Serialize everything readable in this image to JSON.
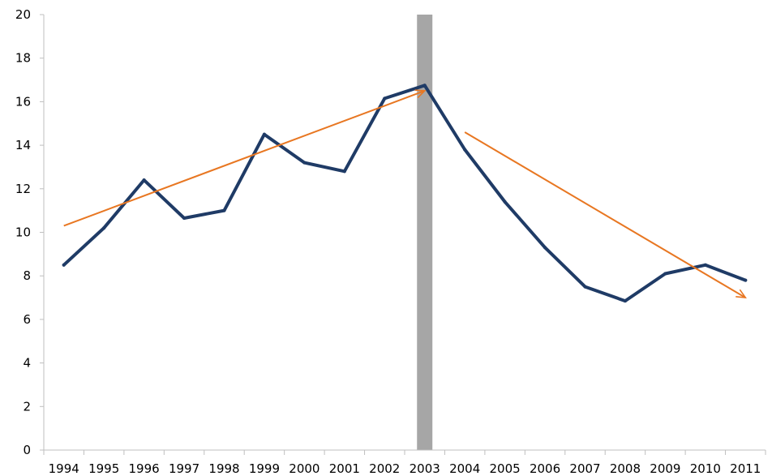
{
  "chart_data": {
    "type": "line",
    "title": "",
    "xlabel": "",
    "ylabel": "",
    "categories": [
      "1994",
      "1995",
      "1996",
      "1997",
      "1998",
      "1999",
      "2000",
      "2001",
      "2002",
      "2003",
      "2004",
      "2005",
      "2006",
      "2007",
      "2008",
      "2009",
      "2010",
      "2011"
    ],
    "series": [
      {
        "color": "#1f3b66",
        "values": [
          8.5,
          10.2,
          12.4,
          10.65,
          11.0,
          14.5,
          13.2,
          12.8,
          16.15,
          16.75,
          13.8,
          11.4,
          9.3,
          7.5,
          6.85,
          8.1,
          8.5,
          7.8
        ]
      }
    ],
    "ylim": [
      0,
      20
    ],
    "yticks": [
      0,
      2,
      4,
      6,
      8,
      10,
      12,
      14,
      16,
      18,
      20
    ],
    "grid": false,
    "legend": "none",
    "highlight_band": {
      "category": "2003",
      "color": "#a6a6a6"
    },
    "trend_arrows": [
      {
        "color": "#e87722",
        "from": {
          "x": "1994",
          "y": 10.3
        },
        "to": {
          "x": "2003",
          "y": 16.5
        }
      },
      {
        "color": "#e87722",
        "from": {
          "x": "2004",
          "y": 14.6
        },
        "to": {
          "x": "2011",
          "y": 7.0
        }
      }
    ],
    "axis_color": "#bfbfbf"
  }
}
